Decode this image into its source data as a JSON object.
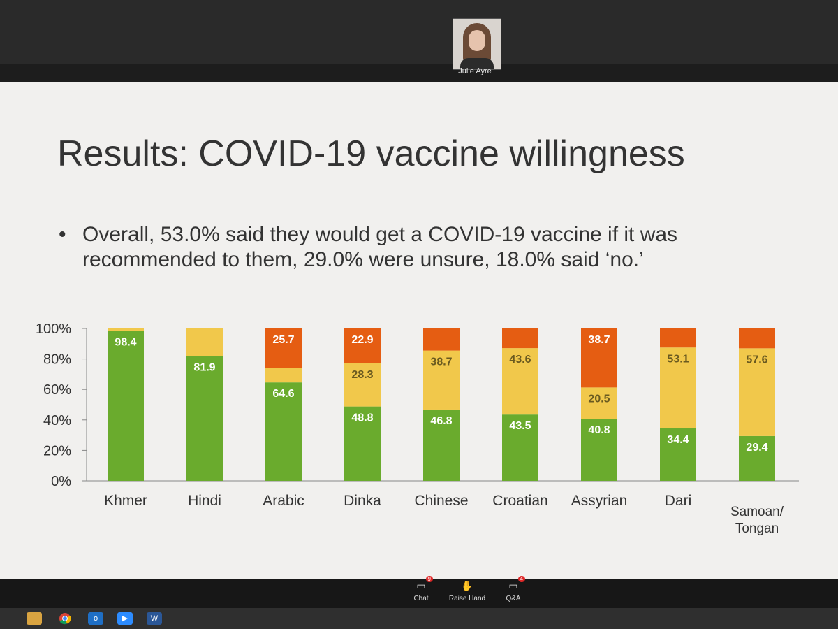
{
  "meeting": {
    "participant_name": "Julie Ayre",
    "controls": [
      {
        "label": "Chat",
        "icon": "chat-icon",
        "badge": "9"
      },
      {
        "label": "Raise Hand",
        "icon": "raise-hand-icon",
        "badge": ""
      },
      {
        "label": "Q&A",
        "icon": "qa-icon",
        "badge": "4"
      }
    ]
  },
  "slide": {
    "title": "Results: COVID-19 vaccine willingness",
    "bullet": "Overall, 53.0% said they would get a COVID-19 vaccine if it was recommended to them, 29.0% were unsure, 18.0% said ‘no.’"
  },
  "colors": {
    "yes": "#6aab2d",
    "unsure": "#f1c84b",
    "no": "#e55d12"
  },
  "chart_data": {
    "type": "bar",
    "stacked": true,
    "categories": [
      "Khmer",
      "Hindi",
      "Arabic",
      "Dinka",
      "Chinese",
      "Croatian",
      "Assyrian",
      "Dari",
      "Samoan/ Tongan"
    ],
    "series": [
      {
        "values": [
          98.4,
          81.9,
          64.6,
          48.8,
          46.8,
          43.5,
          40.8,
          34.4,
          29.4
        ],
        "color": "#6aab2d"
      },
      {
        "values": [
          1.6,
          18.1,
          9.7,
          28.3,
          38.7,
          43.6,
          20.5,
          53.1,
          57.6
        ],
        "color": "#f1c84b"
      },
      {
        "values": [
          0,
          0,
          25.7,
          22.9,
          14.5,
          12.9,
          38.7,
          12.5,
          13.0
        ],
        "color": "#e55d12"
      }
    ],
    "labels": [
      [
        "98.4",
        "81.9",
        "64.6",
        "48.8",
        "46.8",
        "43.5",
        "40.8",
        "34.4",
        "29.4"
      ],
      [
        "",
        "",
        "",
        "28.3",
        "38.7",
        "43.6",
        "20.5",
        "53.1",
        "57.6"
      ],
      [
        "",
        "",
        "25.7",
        "22.9",
        "",
        "",
        "38.7",
        "",
        ""
      ]
    ],
    "yticks": [
      "0%",
      "20%",
      "40%",
      "60%",
      "80%",
      "100%"
    ],
    "ylim": [
      0,
      100
    ],
    "grid": false,
    "legend": "none"
  }
}
